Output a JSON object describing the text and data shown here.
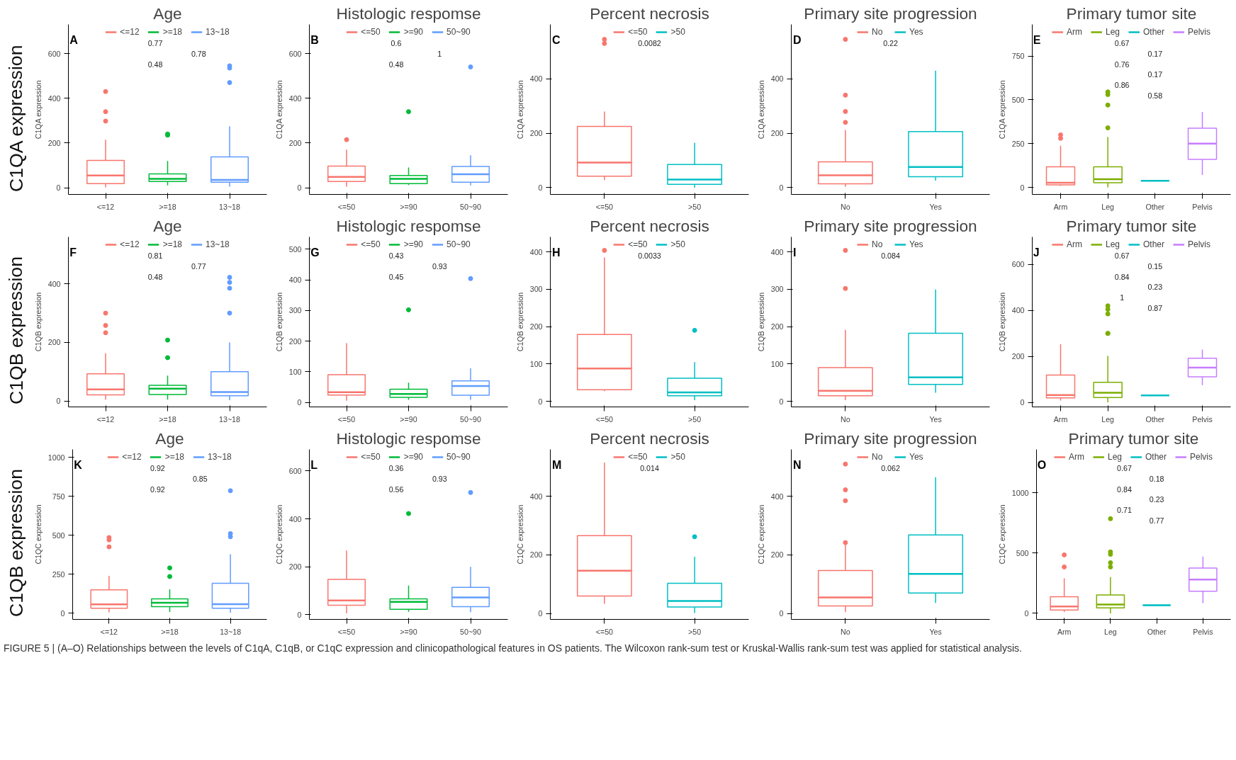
{
  "chart_data": [
    {
      "type": "box",
      "title": "Age",
      "ylabel": "C1QA expression",
      "categories": [
        "<=12",
        ">=18",
        "13~18"
      ],
      "legend": "top",
      "ylim": [
        -30,
        730
      ],
      "yticks": [
        0,
        200,
        400,
        600
      ],
      "series": [
        {
          "name": "<=12",
          "color": "#f8766d",
          "boxes": [
            {
              "low": 2,
              "q1": 18,
              "median": 55,
              "q3": 122,
              "high": 215,
              "outliers": [
                430,
                340,
                298
              ]
            },
            null,
            null
          ]
        },
        {
          "name": ">=18",
          "color": "#00ba38",
          "boxes": [
            null,
            {
              "low": 10,
              "q1": 28,
              "median": 40,
              "q3": 62,
              "high": 120,
              "outliers": [
                240,
                235
              ]
            },
            null
          ]
        },
        {
          "name": "13~18",
          "color": "#619cff",
          "boxes": [
            null,
            null,
            {
              "low": 5,
              "q1": 25,
              "median": 35,
              "q3": 138,
              "high": 275,
              "outliers": [
                545,
                535,
                470
              ]
            }
          ]
        }
      ],
      "annotations": [
        "C1QA expression",
        "A",
        "0.77",
        "0.78",
        "0.48"
      ]
    },
    {
      "type": "box",
      "title": "Histologic respomse",
      "ylabel": "C1QA expression",
      "categories": [
        "<=50",
        ">=90",
        "50~90"
      ],
      "legend": "top",
      "ylim": [
        -30,
        730
      ],
      "yticks": [
        0,
        200,
        400,
        600
      ],
      "series": [
        {
          "name": "<=50",
          "color": "#f8766d",
          "boxes": [
            {
              "low": 5,
              "q1": 28,
              "median": 48,
              "q3": 97,
              "high": 170,
              "outliers": [
                215
              ]
            },
            null,
            null
          ]
        },
        {
          "name": ">=90",
          "color": "#00ba38",
          "boxes": [
            null,
            {
              "low": 12,
              "q1": 18,
              "median": 40,
              "q3": 55,
              "high": 90,
              "outliers": [
                340
              ]
            },
            null
          ]
        },
        {
          "name": "50~90",
          "color": "#619cff",
          "boxes": [
            null,
            null,
            {
              "low": 10,
              "q1": 25,
              "median": 60,
              "q3": 95,
              "high": 145,
              "outliers": [
                540
              ]
            }
          ]
        }
      ],
      "annotations": [
        "B",
        "0.6",
        "1",
        "0.48"
      ]
    },
    {
      "type": "box",
      "title": "Percent necrosis",
      "ylabel": "C1QA expression",
      "categories": [
        "<=50",
        ">50"
      ],
      "legend": "top",
      "ylim": [
        -25,
        600
      ],
      "yticks": [
        0,
        200,
        400
      ],
      "series": [
        {
          "name": "<=50",
          "color": "#f8766d",
          "boxes": [
            {
              "low": 28,
              "q1": 42,
              "median": 92,
              "q3": 225,
              "high": 280,
              "outliers": [
                545,
                530
              ]
            },
            null
          ]
        },
        {
          "name": ">50",
          "color": "#00bfc4",
          "boxes": [
            null,
            {
              "low": 0,
              "q1": 12,
              "median": 30,
              "q3": 85,
              "high": 165
            }
          ]
        }
      ],
      "annotations": [
        "C",
        "0.0082"
      ]
    },
    {
      "type": "box",
      "title": "Primary site progression",
      "ylabel": "C1QA expression",
      "categories": [
        "No",
        "Yes"
      ],
      "legend": "top",
      "ylim": [
        -25,
        600
      ],
      "yticks": [
        0,
        200,
        400
      ],
      "series": [
        {
          "name": "No",
          "color": "#f8766d",
          "boxes": [
            {
              "low": 3,
              "q1": 14,
              "median": 45,
              "q3": 95,
              "high": 212,
              "outliers": [
                545,
                340,
                280,
                240
              ]
            },
            null
          ]
        },
        {
          "name": "Yes",
          "color": "#00bfc4",
          "boxes": [
            null,
            {
              "low": 26,
              "q1": 40,
              "median": 76,
              "q3": 206,
              "high": 430
            }
          ]
        }
      ],
      "annotations": [
        "D",
        "0.22"
      ]
    },
    {
      "type": "box",
      "title": "Primary tumor site",
      "ylabel": "C1QA expression",
      "categories": [
        "Arm",
        "Leg",
        "Other",
        "Pelvis"
      ],
      "legend": "top",
      "ylim": [
        -40,
        930
      ],
      "yticks": [
        0,
        250,
        500,
        750
      ],
      "series": [
        {
          "name": "Arm",
          "color": "#f8766d",
          "boxes": [
            {
              "low": 8,
              "q1": 15,
              "median": 27,
              "q3": 118,
              "high": 238,
              "outliers": [
                300,
                280
              ]
            },
            null,
            null,
            null
          ]
        },
        {
          "name": "Leg",
          "color": "#7cae00",
          "boxes": [
            null,
            {
              "low": 0,
              "q1": 27,
              "median": 47,
              "q3": 118,
              "high": 287,
              "outliers": [
                545,
                530,
                470,
                340
              ]
            },
            null,
            null
          ]
        },
        {
          "name": "Other",
          "color": "#00bfc4",
          "boxes": [
            null,
            null,
            {
              "low": 38,
              "q1": 38,
              "median": 38,
              "q3": 38,
              "high": 38
            },
            null
          ]
        },
        {
          "name": "Pelvis",
          "color": "#c77cff",
          "boxes": [
            null,
            null,
            null,
            {
              "low": 71,
              "q1": 160,
              "median": 250,
              "q3": 338,
              "high": 431
            }
          ]
        }
      ],
      "annotations": [
        "E",
        "0.67",
        "0.17",
        "0.76",
        "0.17",
        "0.86",
        "0.58"
      ]
    },
    {
      "type": "box",
      "title": "Age",
      "ylabel": "C1QB expression",
      "categories": [
        "<=12",
        ">=18",
        "13~18"
      ],
      "legend": "top",
      "ylim": [
        -20,
        560
      ],
      "yticks": [
        0,
        200,
        400
      ],
      "series": [
        {
          "name": "<=12",
          "color": "#f8766d",
          "boxes": [
            {
              "low": 5,
              "q1": 21,
              "median": 40,
              "q3": 93,
              "high": 163,
              "outliers": [
                300,
                258,
                233
              ]
            },
            null,
            null
          ]
        },
        {
          "name": ">=18",
          "color": "#00ba38",
          "boxes": [
            null,
            {
              "low": 5,
              "q1": 22,
              "median": 42,
              "q3": 54,
              "high": 87,
              "outliers": [
                208,
                148
              ]
            },
            null
          ]
        },
        {
          "name": "13~18",
          "color": "#619cff",
          "boxes": [
            null,
            null,
            {
              "low": 3,
              "q1": 18,
              "median": 31,
              "q3": 100,
              "high": 200,
              "outliers": [
                422,
                405,
                385,
                300
              ]
            }
          ]
        }
      ],
      "annotations": [
        "C1QB expression",
        "F",
        "0.81",
        "0.77",
        "0.48"
      ]
    },
    {
      "type": "box",
      "title": "Histologic respomse",
      "ylabel": "C1QB expression",
      "categories": [
        "<=50",
        ">=90",
        "50~90"
      ],
      "legend": "top",
      "ylim": [
        -15,
        540
      ],
      "yticks": [
        0,
        100,
        200,
        300,
        400,
        500
      ],
      "series": [
        {
          "name": "<=50",
          "color": "#f8766d",
          "boxes": [
            {
              "low": 5,
              "q1": 24,
              "median": 33,
              "q3": 90,
              "high": 193
            },
            null,
            null
          ]
        },
        {
          "name": ">=90",
          "color": "#00ba38",
          "boxes": [
            null,
            {
              "low": 8,
              "q1": 16,
              "median": 27,
              "q3": 43,
              "high": 64,
              "outliers": [
                302
              ]
            },
            null
          ]
        },
        {
          "name": "50~90",
          "color": "#619cff",
          "boxes": [
            null,
            null,
            {
              "low": 8,
              "q1": 23,
              "median": 53,
              "q3": 70,
              "high": 111,
              "outliers": [
                404
              ]
            }
          ]
        }
      ],
      "annotations": [
        "G",
        "0.43",
        "0.93",
        "0.45"
      ]
    },
    {
      "type": "box",
      "title": "Percent necrosis",
      "ylabel": "C1QB expression",
      "categories": [
        "<=50",
        ">50"
      ],
      "legend": "top",
      "ylim": [
        -15,
        440
      ],
      "yticks": [
        0,
        100,
        200,
        300,
        400
      ],
      "series": [
        {
          "name": "<=50",
          "color": "#f8766d",
          "boxes": [
            {
              "low": 27,
              "q1": 31,
              "median": 88,
              "q3": 179,
              "high": 385,
              "outliers": [
                404
              ]
            },
            null
          ]
        },
        {
          "name": ">50",
          "color": "#00bfc4",
          "boxes": [
            null,
            {
              "low": 3,
              "q1": 15,
              "median": 24,
              "q3": 62,
              "high": 105,
              "outliers": [
                190
              ]
            }
          ]
        }
      ],
      "annotations": [
        "H",
        "0.0033"
      ]
    },
    {
      "type": "box",
      "title": "Primary site progression",
      "ylabel": "C1QB expression",
      "categories": [
        "No",
        "Yes"
      ],
      "legend": "top",
      "ylim": [
        -15,
        440
      ],
      "yticks": [
        0,
        100,
        200,
        300,
        400
      ],
      "series": [
        {
          "name": "No",
          "color": "#f8766d",
          "boxes": [
            {
              "low": 3,
              "q1": 15,
              "median": 28,
              "q3": 90,
              "high": 191,
              "outliers": [
                404,
                302
              ]
            },
            null
          ]
        },
        {
          "name": "Yes",
          "color": "#00bfc4",
          "boxes": [
            null,
            {
              "low": 23,
              "q1": 45,
              "median": 64,
              "q3": 182,
              "high": 299
            }
          ]
        }
      ],
      "annotations": [
        "I",
        "0.084"
      ]
    },
    {
      "type": "box",
      "title": "Primary tumor site",
      "ylabel": "C1QB expression",
      "categories": [
        "Arm",
        "Leg",
        "Other",
        "Pelvis"
      ],
      "legend": "top",
      "ylim": [
        -20,
        720
      ],
      "yticks": [
        0,
        200,
        400,
        600
      ],
      "series": [
        {
          "name": "Arm",
          "color": "#f8766d",
          "boxes": [
            {
              "low": 8,
              "q1": 19,
              "median": 32,
              "q3": 119,
              "high": 253
            },
            null,
            null,
            null
          ]
        },
        {
          "name": "Leg",
          "color": "#7cae00",
          "boxes": [
            null,
            {
              "low": 0,
              "q1": 21,
              "median": 42,
              "q3": 87,
              "high": 202,
              "outliers": [
                420,
                405,
                385,
                300,
                300
              ]
            },
            null,
            null
          ]
        },
        {
          "name": "Other",
          "color": "#00bfc4",
          "boxes": [
            null,
            null,
            {
              "low": 30,
              "q1": 30,
              "median": 30,
              "q3": 30,
              "high": 30
            },
            null
          ]
        },
        {
          "name": "Pelvis",
          "color": "#c77cff",
          "boxes": [
            null,
            null,
            null,
            {
              "low": 75,
              "q1": 111,
              "median": 151,
              "q3": 192,
              "high": 230
            }
          ]
        }
      ],
      "annotations": [
        "J",
        "0.67",
        "0.15",
        "0.84",
        "0.23",
        "1",
        "0.87"
      ]
    },
    {
      "type": "box",
      "title": "Age",
      "ylabel": "C1QC expression",
      "categories": [
        "<=12",
        ">=18",
        "13~18"
      ],
      "legend": "top",
      "ylim": [
        -40,
        1050
      ],
      "yticks": [
        0,
        250,
        500,
        750,
        1000
      ],
      "series": [
        {
          "name": "<=12",
          "color": "#f8766d",
          "boxes": [
            {
              "low": 5,
              "q1": 31,
              "median": 56,
              "q3": 150,
              "high": 239,
              "outliers": [
                485,
                470,
                425
              ]
            },
            null,
            null
          ]
        },
        {
          "name": ">=18",
          "color": "#00ba38",
          "boxes": [
            null,
            {
              "low": 8,
              "q1": 42,
              "median": 67,
              "q3": 92,
              "high": 153,
              "outliers": [
                290,
                235
              ]
            },
            null
          ]
        },
        {
          "name": "13~18",
          "color": "#619cff",
          "boxes": [
            null,
            null,
            {
              "low": 3,
              "q1": 31,
              "median": 58,
              "q3": 192,
              "high": 378,
              "outliers": [
                785,
                510,
                490
              ]
            }
          ]
        }
      ],
      "annotations": [
        "C1QB expression",
        "K",
        "0.92",
        "0.85",
        "0.92"
      ]
    },
    {
      "type": "box",
      "title": "Histologic respomse",
      "ylabel": "C1QC expression",
      "categories": [
        "<=50",
        ">=90",
        "50~90"
      ],
      "legend": "top",
      "ylim": [
        -20,
        690
      ],
      "yticks": [
        0,
        200,
        400,
        600
      ],
      "series": [
        {
          "name": "<=50",
          "color": "#f8766d",
          "boxes": [
            {
              "low": 5,
              "q1": 39,
              "median": 59,
              "q3": 147,
              "high": 268
            },
            null,
            null
          ]
        },
        {
          "name": ">=90",
          "color": "#00ba38",
          "boxes": [
            null,
            {
              "low": 12,
              "q1": 22,
              "median": 53,
              "q3": 66,
              "high": 121,
              "outliers": [
                422
              ]
            },
            null
          ]
        },
        {
          "name": "50~90",
          "color": "#619cff",
          "boxes": [
            null,
            null,
            {
              "low": 10,
              "q1": 33,
              "median": 72,
              "q3": 114,
              "high": 200,
              "outliers": [
                510
              ]
            }
          ]
        }
      ],
      "annotations": [
        "L",
        "0.36",
        "0.93",
        "0.56"
      ]
    },
    {
      "type": "box",
      "title": "Percent necrosis",
      "ylabel": "C1QC expression",
      "categories": [
        "<=50",
        ">50"
      ],
      "legend": "top",
      "ylim": [
        -20,
        560
      ],
      "yticks": [
        0,
        200,
        400
      ],
      "series": [
        {
          "name": "<=50",
          "color": "#f8766d",
          "boxes": [
            {
              "low": 33,
              "q1": 60,
              "median": 146,
              "q3": 266,
              "high": 515
            },
            null
          ]
        },
        {
          "name": ">50",
          "color": "#00bfc4",
          "boxes": [
            null,
            {
              "low": 2,
              "q1": 22,
              "median": 43,
              "q3": 103,
              "high": 194,
              "outliers": [
                262
              ]
            }
          ]
        }
      ],
      "annotations": [
        "M",
        "0.014"
      ]
    },
    {
      "type": "box",
      "title": "Primary site progression",
      "ylabel": "C1QC expression",
      "categories": [
        "No",
        "Yes"
      ],
      "legend": "top",
      "ylim": [
        -20,
        560
      ],
      "yticks": [
        0,
        200,
        400
      ],
      "series": [
        {
          "name": "No",
          "color": "#f8766d",
          "boxes": [
            {
              "low": 5,
              "q1": 26,
              "median": 55,
              "q3": 147,
              "high": 239,
              "outliers": [
                510,
                422,
                385,
                242
              ]
            },
            null
          ]
        },
        {
          "name": "Yes",
          "color": "#00bfc4",
          "boxes": [
            null,
            {
              "low": 36,
              "q1": 70,
              "median": 135,
              "q3": 268,
              "high": 465
            }
          ]
        }
      ],
      "annotations": [
        "N",
        "0.062"
      ]
    },
    {
      "type": "box",
      "title": "Primary tumor site",
      "ylabel": "C1QC expression",
      "categories": [
        "Arm",
        "Leg",
        "Other",
        "Pelvis"
      ],
      "legend": "top",
      "ylim": [
        -50,
        1360
      ],
      "yticks": [
        0,
        500,
        1000
      ],
      "series": [
        {
          "name": "Arm",
          "color": "#f8766d",
          "boxes": [
            {
              "low": 10,
              "q1": 28,
              "median": 57,
              "q3": 138,
              "high": 291,
              "outliers": [
                485,
                385
              ]
            },
            null,
            null,
            null
          ]
        },
        {
          "name": "Leg",
          "color": "#7cae00",
          "boxes": [
            null,
            {
              "low": 0,
              "q1": 46,
              "median": 74,
              "q3": 152,
              "high": 301,
              "outliers": [
                785,
                510,
                490,
                420,
                385
              ]
            },
            null,
            null
          ]
        },
        {
          "name": "Other",
          "color": "#00bfc4",
          "boxes": [
            null,
            null,
            {
              "low": 68,
              "q1": 68,
              "median": 68,
              "q3": 68,
              "high": 68
            },
            null
          ]
        },
        {
          "name": "Pelvis",
          "color": "#c77cff",
          "boxes": [
            null,
            null,
            null,
            {
              "low": 85,
              "q1": 184,
              "median": 280,
              "q3": 376,
              "high": 472
            }
          ]
        }
      ],
      "annotations": [
        "O",
        "0.67",
        "0.18",
        "0.84",
        "0.23",
        "0.71",
        "0.77",
        "FIGURE 5 | (A–O) Relationships between the levels of C1qA, C1qB, or C1qC expression and clinicopathological features in OS patients. The Wilcoxon rank-sum test or Kruskal-Wallis rank-sum test was applied for statistical analysis."
      ]
    }
  ]
}
